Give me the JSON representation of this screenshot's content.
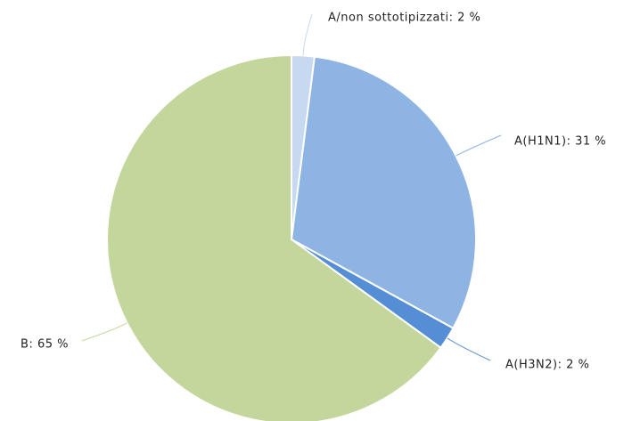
{
  "chart_data": {
    "type": "pie",
    "categories": [
      "A/non sottotipizzati",
      "A(H1N1)",
      "A(H3N2)",
      "B"
    ],
    "values": [
      2,
      31,
      2,
      65
    ],
    "value_labels": [
      "A/non sottotipizzati: 2 %",
      "A(H1N1): 31 %",
      "A(H3N2): 2 %",
      "B: 65 %"
    ],
    "colors": [
      "#c6d9f1",
      "#8eb4e3",
      "#558ed5",
      "#c3d69b"
    ]
  }
}
